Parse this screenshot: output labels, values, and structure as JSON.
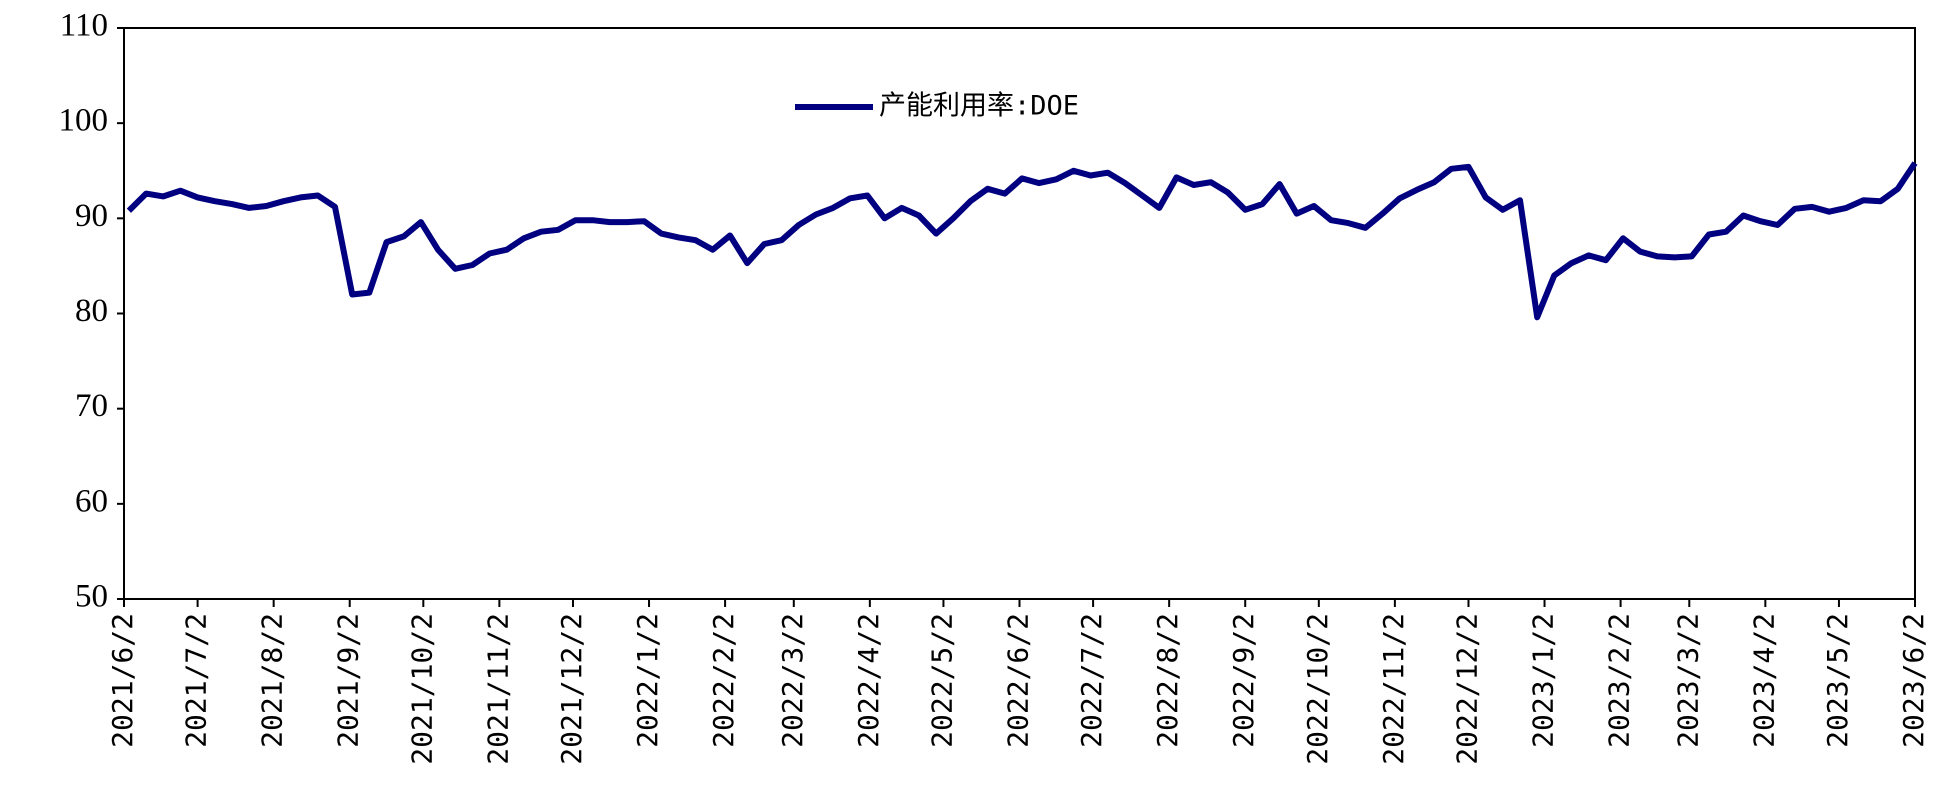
{
  "chart_data": {
    "type": "line",
    "x": [
      "2021/6/4",
      "2021/6/11",
      "2021/6/18",
      "2021/6/25",
      "2021/7/2",
      "2021/7/9",
      "2021/7/16",
      "2021/7/23",
      "2021/7/30",
      "2021/8/6",
      "2021/8/13",
      "2021/8/20",
      "2021/8/27",
      "2021/9/3",
      "2021/9/10",
      "2021/9/17",
      "2021/9/24",
      "2021/10/1",
      "2021/10/8",
      "2021/10/15",
      "2021/10/22",
      "2021/10/29",
      "2021/11/5",
      "2021/11/12",
      "2021/11/19",
      "2021/11/26",
      "2021/12/3",
      "2021/12/10",
      "2021/12/17",
      "2021/12/24",
      "2021/12/31",
      "2022/1/7",
      "2022/1/14",
      "2022/1/21",
      "2022/1/28",
      "2022/2/4",
      "2022/2/11",
      "2022/2/18",
      "2022/2/25",
      "2022/3/4",
      "2022/3/11",
      "2022/3/18",
      "2022/3/25",
      "2022/4/1",
      "2022/4/8",
      "2022/4/15",
      "2022/4/22",
      "2022/4/29",
      "2022/5/6",
      "2022/5/13",
      "2022/5/20",
      "2022/5/27",
      "2022/6/3",
      "2022/6/10",
      "2022/6/17",
      "2022/6/24",
      "2022/7/1",
      "2022/7/8",
      "2022/7/15",
      "2022/7/22",
      "2022/7/29",
      "2022/8/5",
      "2022/8/12",
      "2022/8/19",
      "2022/8/26",
      "2022/9/2",
      "2022/9/9",
      "2022/9/16",
      "2022/9/23",
      "2022/9/30",
      "2022/10/7",
      "2022/10/14",
      "2022/10/21",
      "2022/10/28",
      "2022/11/4",
      "2022/11/11",
      "2022/11/18",
      "2022/11/25",
      "2022/12/2",
      "2022/12/9",
      "2022/12/16",
      "2022/12/23",
      "2022/12/30",
      "2023/1/6",
      "2023/1/13",
      "2023/1/20",
      "2023/1/27",
      "2023/2/3",
      "2023/2/10",
      "2023/2/17",
      "2023/2/24",
      "2023/3/3",
      "2023/3/10",
      "2023/3/17",
      "2023/3/24",
      "2023/3/31",
      "2023/4/7",
      "2023/4/14",
      "2023/4/21",
      "2023/4/28",
      "2023/5/5",
      "2023/5/12",
      "2023/5/19",
      "2023/5/26",
      "2023/6/2"
    ],
    "series": [
      {
        "name": "产能利用率:DOE",
        "color": "#000080",
        "values": [
          90.8,
          92.6,
          92.3,
          92.9,
          92.2,
          91.8,
          91.5,
          91.1,
          91.3,
          91.8,
          92.2,
          92.4,
          91.2,
          82.0,
          82.2,
          87.5,
          88.1,
          89.6,
          86.7,
          84.7,
          85.1,
          86.3,
          86.7,
          87.9,
          88.6,
          88.8,
          89.8,
          89.8,
          89.6,
          89.6,
          89.7,
          88.4,
          88.0,
          87.7,
          86.7,
          88.2,
          85.3,
          87.3,
          87.7,
          89.3,
          90.4,
          91.1,
          92.1,
          92.4,
          90.0,
          91.1,
          90.3,
          88.4,
          90.0,
          91.8,
          93.1,
          92.6,
          94.2,
          93.7,
          94.1,
          95.0,
          94.5,
          94.8,
          93.7,
          92.4,
          91.1,
          94.3,
          93.5,
          93.8,
          92.7,
          90.9,
          91.5,
          93.6,
          90.5,
          91.3,
          89.8,
          89.5,
          89.0,
          90.5,
          92.1,
          93.0,
          93.8,
          95.2,
          95.4,
          92.2,
          90.9,
          91.9,
          79.6,
          84.0,
          85.3,
          86.1,
          85.6,
          87.9,
          86.5,
          86.0,
          85.9,
          86.0,
          88.3,
          88.6,
          90.3,
          89.7,
          89.3,
          91.0,
          91.2,
          90.7,
          91.1,
          91.9,
          91.8,
          93.1,
          95.8
        ]
      }
    ],
    "xlim": [
      "2021/6/2",
      "2023/6/2"
    ],
    "xticks": [
      "2021/6/2",
      "2021/7/2",
      "2021/8/2",
      "2021/9/2",
      "2021/10/2",
      "2021/11/2",
      "2021/12/2",
      "2022/1/2",
      "2022/2/2",
      "2022/3/2",
      "2022/4/2",
      "2022/5/2",
      "2022/6/2",
      "2022/7/2",
      "2022/8/2",
      "2022/9/2",
      "2022/10/2",
      "2022/11/2",
      "2022/12/2",
      "2023/1/2",
      "2023/2/2",
      "2023/3/2",
      "2023/4/2",
      "2023/5/2",
      "2023/6/2"
    ],
    "ylim": [
      50,
      110
    ],
    "yticks": [
      50,
      60,
      70,
      80,
      90,
      100,
      110
    ],
    "legend": "top"
  }
}
